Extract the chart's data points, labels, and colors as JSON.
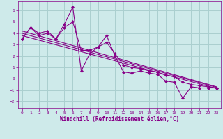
{
  "xlabel": "Windchill (Refroidissement éolien,°C)",
  "bg_color": "#ceeaea",
  "grid_color": "#aacfcf",
  "line_color": "#880088",
  "xlim": [
    -0.5,
    23.5
  ],
  "ylim": [
    -2.6,
    6.8
  ],
  "xticks": [
    0,
    1,
    2,
    3,
    4,
    5,
    6,
    7,
    8,
    9,
    10,
    11,
    12,
    13,
    14,
    15,
    16,
    17,
    18,
    19,
    20,
    21,
    22,
    23
  ],
  "yticks": [
    -2,
    -1,
    0,
    1,
    2,
    3,
    4,
    5,
    6
  ],
  "series1": {
    "x": [
      0,
      1,
      2,
      3,
      4,
      5,
      6,
      7,
      8,
      9,
      10,
      11,
      12,
      13,
      14,
      15,
      16,
      17,
      18,
      19,
      20,
      21,
      22,
      23
    ],
    "y": [
      3.5,
      4.5,
      4.0,
      4.2,
      3.5,
      4.8,
      6.3,
      0.7,
      2.2,
      2.8,
      3.8,
      2.0,
      0.6,
      0.5,
      0.7,
      0.5,
      0.4,
      -0.2,
      -0.3,
      -1.7,
      -0.7,
      -0.8,
      -0.8,
      -0.8
    ]
  },
  "series2": {
    "x": [
      0,
      1,
      2,
      3,
      4,
      5,
      6,
      7,
      8,
      9,
      10,
      11,
      12,
      13,
      14,
      15,
      16,
      17,
      18,
      19,
      20,
      21,
      22,
      23
    ],
    "y": [
      3.5,
      4.5,
      3.8,
      4.0,
      3.5,
      4.5,
      5.0,
      2.5,
      2.5,
      2.8,
      3.2,
      2.2,
      1.2,
      1.0,
      0.9,
      0.7,
      0.6,
      0.3,
      0.2,
      -0.3,
      -0.5,
      -0.6,
      -0.7,
      -0.8
    ]
  },
  "trend1_x": [
    0,
    23
  ],
  "trend1_y": [
    4.2,
    -0.7
  ],
  "trend2_x": [
    0,
    23
  ],
  "trend2_y": [
    3.8,
    -0.85
  ],
  "trend3_x": [
    0,
    23
  ],
  "trend3_y": [
    4.0,
    -0.75
  ]
}
